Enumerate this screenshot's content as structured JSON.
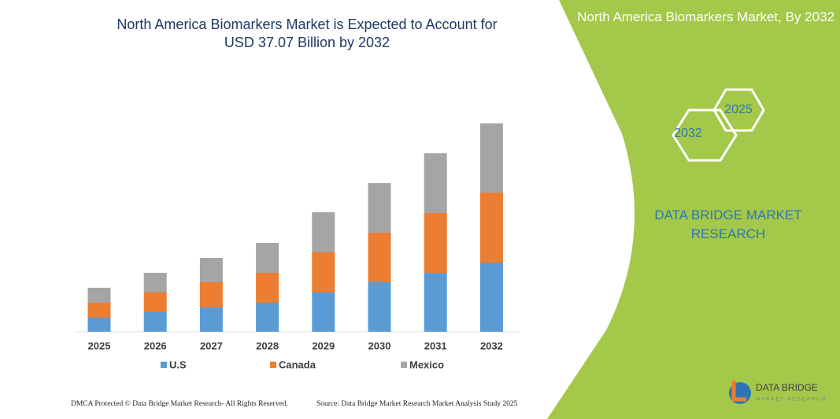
{
  "chart_data": {
    "type": "bar",
    "stacked": true,
    "title": "North America Biomarkers Market is Expected to Account for USD 37.07 Billion by 2032",
    "categories": [
      "2025",
      "2026",
      "2027",
      "2028",
      "2029",
      "2030",
      "2031",
      "2032"
    ],
    "series": [
      {
        "name": "U.S",
        "color": "#5b9bd5",
        "values": [
          18,
          25,
          31,
          37,
          50,
          63,
          75,
          88
        ]
      },
      {
        "name": "Canada",
        "color": "#ed7d31",
        "values": [
          19,
          25,
          32,
          38,
          51,
          63,
          76,
          89
        ]
      },
      {
        "name": "Mexico",
        "color": "#a5a5a5",
        "values": [
          19,
          25,
          31,
          38,
          51,
          63,
          76,
          88
        ]
      }
    ]
  },
  "panel": {
    "title": "North America Biomarkers Market, By 2032",
    "hex_top": "2025",
    "hex_bottom": "2032",
    "brand": "DATA BRIDGE MARKET RESEARCH"
  },
  "footer": {
    "copyright": "DMCA Protected © Data Bridge Market Research- All Rights Reserved.",
    "source": "Source: Data Bridge Market Research  Market Analysis Study 2025"
  },
  "logo": {
    "name": "DATA BRIDGE",
    "tagline": "MARKET RESEARCH"
  }
}
